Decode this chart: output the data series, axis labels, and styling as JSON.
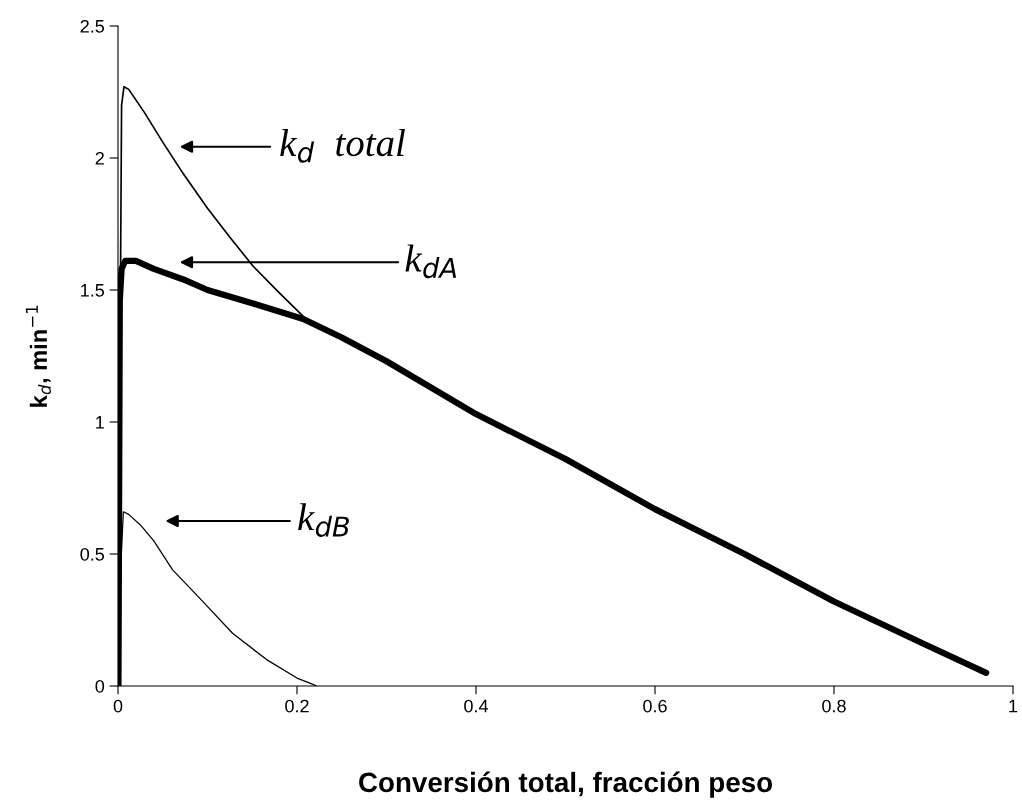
{
  "chart_data": {
    "type": "line",
    "xlabel": "Conversión total, fracción peso",
    "ylabel": "k$_{d}$, min$^{−1}$",
    "xlim": [
      0,
      1
    ],
    "ylim": [
      0,
      2.5
    ],
    "xticks": [
      0,
      0.2,
      0.4,
      0.6,
      0.8,
      1
    ],
    "yticks": [
      0,
      0.5,
      1,
      1.5,
      2,
      2.5
    ],
    "grid": false,
    "marker": "none",
    "line_style": "solid",
    "series": [
      {
        "color": "#000000",
        "x": [
          0,
          0.004,
          0.0067,
          0.012,
          0.03,
          0.05,
          0.073,
          0.1,
          0.125,
          0.151,
          0.18,
          0.207,
          0.23
        ],
        "values": [
          0,
          2.2,
          2.27,
          2.26,
          2.17,
          2.06,
          1.94,
          1.81,
          1.7,
          1.59,
          1.49,
          1.4,
          1.35
        ]
      },
      {
        "color": "#000000",
        "x": [
          0.0005,
          0.002,
          0.004,
          0.008,
          0.02,
          0.04,
          0.073,
          0.1,
          0.15,
          0.207,
          0.25,
          0.3,
          0.4,
          0.5,
          0.6,
          0.7,
          0.8,
          0.9,
          0.97
        ],
        "values": [
          0,
          1.46,
          1.58,
          1.61,
          1.61,
          1.58,
          1.54,
          1.5,
          1.45,
          1.39,
          1.32,
          1.23,
          1.03,
          0.86,
          0.67,
          0.5,
          0.32,
          0.16,
          0.05
        ]
      },
      {
        "color": "#000000",
        "x": [
          0,
          0.003,
          0.006,
          0.012,
          0.025,
          0.04,
          0.061,
          0.092,
          0.128,
          0.166,
          0.2,
          0.215,
          0.222
        ],
        "values": [
          0,
          0.45,
          0.66,
          0.65,
          0.61,
          0.55,
          0.44,
          0.33,
          0.2,
          0.1,
          0.03,
          0.01,
          0
        ]
      }
    ],
    "annotations": [
      "k$_{d}$  total",
      "k$_{dA}$",
      "k$_{dB}$"
    ]
  }
}
